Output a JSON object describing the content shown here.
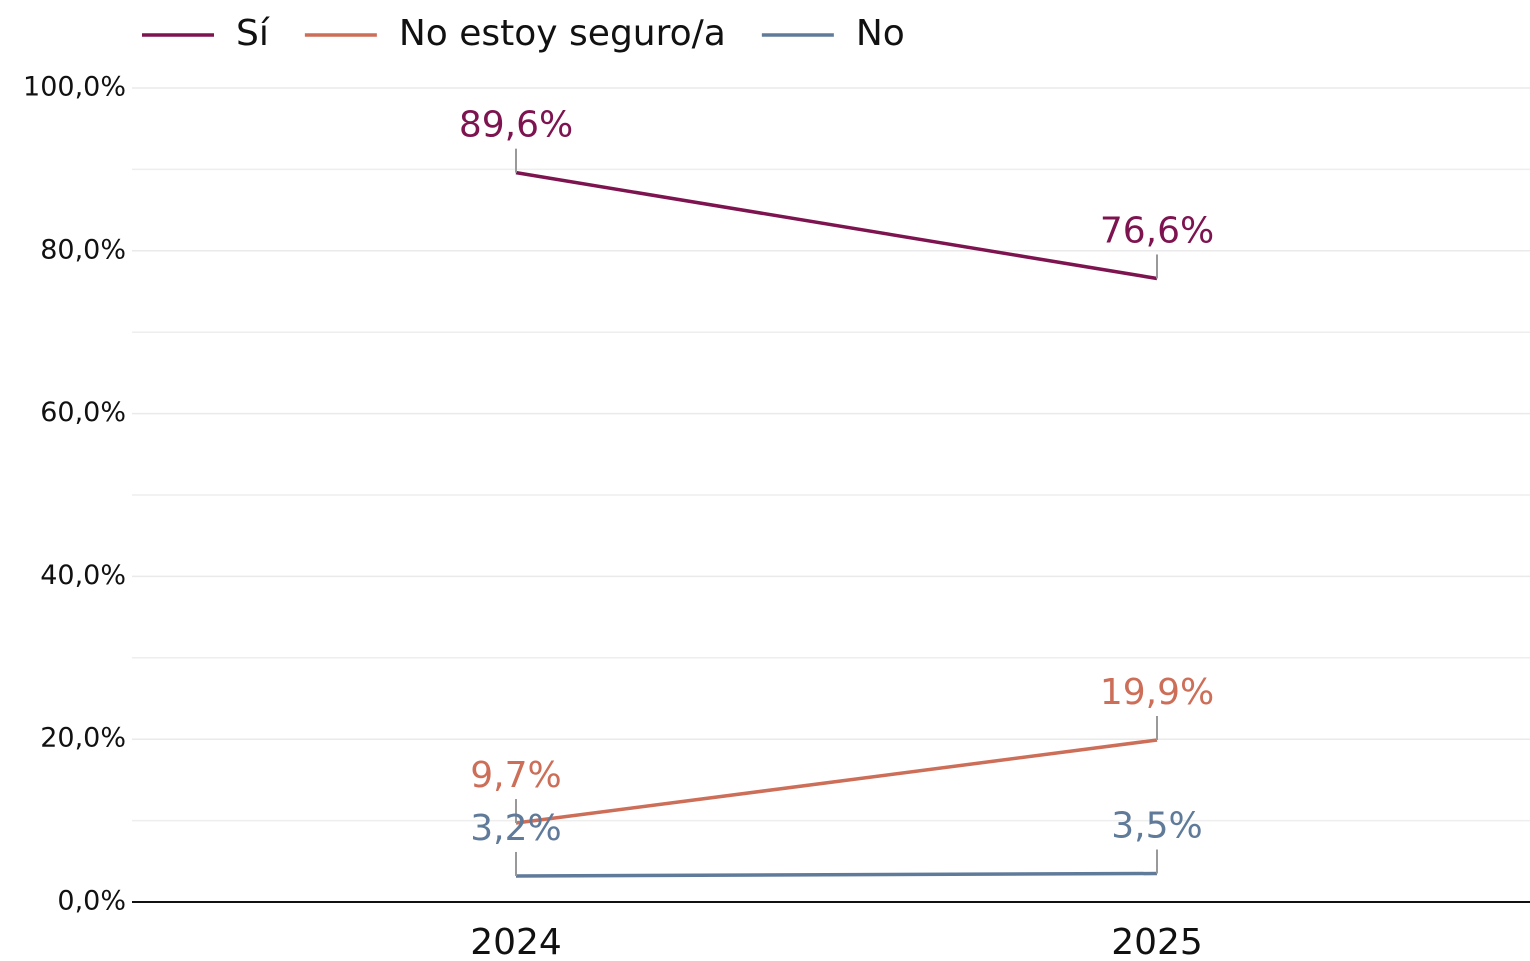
{
  "chart_data": {
    "type": "line",
    "categories": [
      "2024",
      "2025"
    ],
    "series": [
      {
        "name": "Sí",
        "color": "#7d1450",
        "values": [
          89.6,
          76.6
        ],
        "value_labels": [
          "89,6%",
          "76,6%"
        ]
      },
      {
        "name": "No estoy seguro/a",
        "color": "#cc6e58",
        "values": [
          9.7,
          19.9
        ],
        "value_labels": [
          "9,7%",
          "19,9%"
        ]
      },
      {
        "name": "No",
        "color": "#607b9a",
        "values": [
          3.2,
          3.5
        ],
        "value_labels": [
          "3,2%",
          "3,5%"
        ]
      }
    ],
    "ylim": [
      0,
      100
    ],
    "yticks": [
      {
        "value": 0,
        "label": "0,0%"
      },
      {
        "value": 20,
        "label": "20,0%"
      },
      {
        "value": 40,
        "label": "40,0%"
      },
      {
        "value": 60,
        "label": "60,0%"
      },
      {
        "value": 80,
        "label": "80,0%"
      },
      {
        "value": 100,
        "label": "100,0%"
      }
    ],
    "minor_yticks": [
      10,
      30,
      50,
      70,
      90
    ],
    "grid": true,
    "legend": "top-left"
  }
}
